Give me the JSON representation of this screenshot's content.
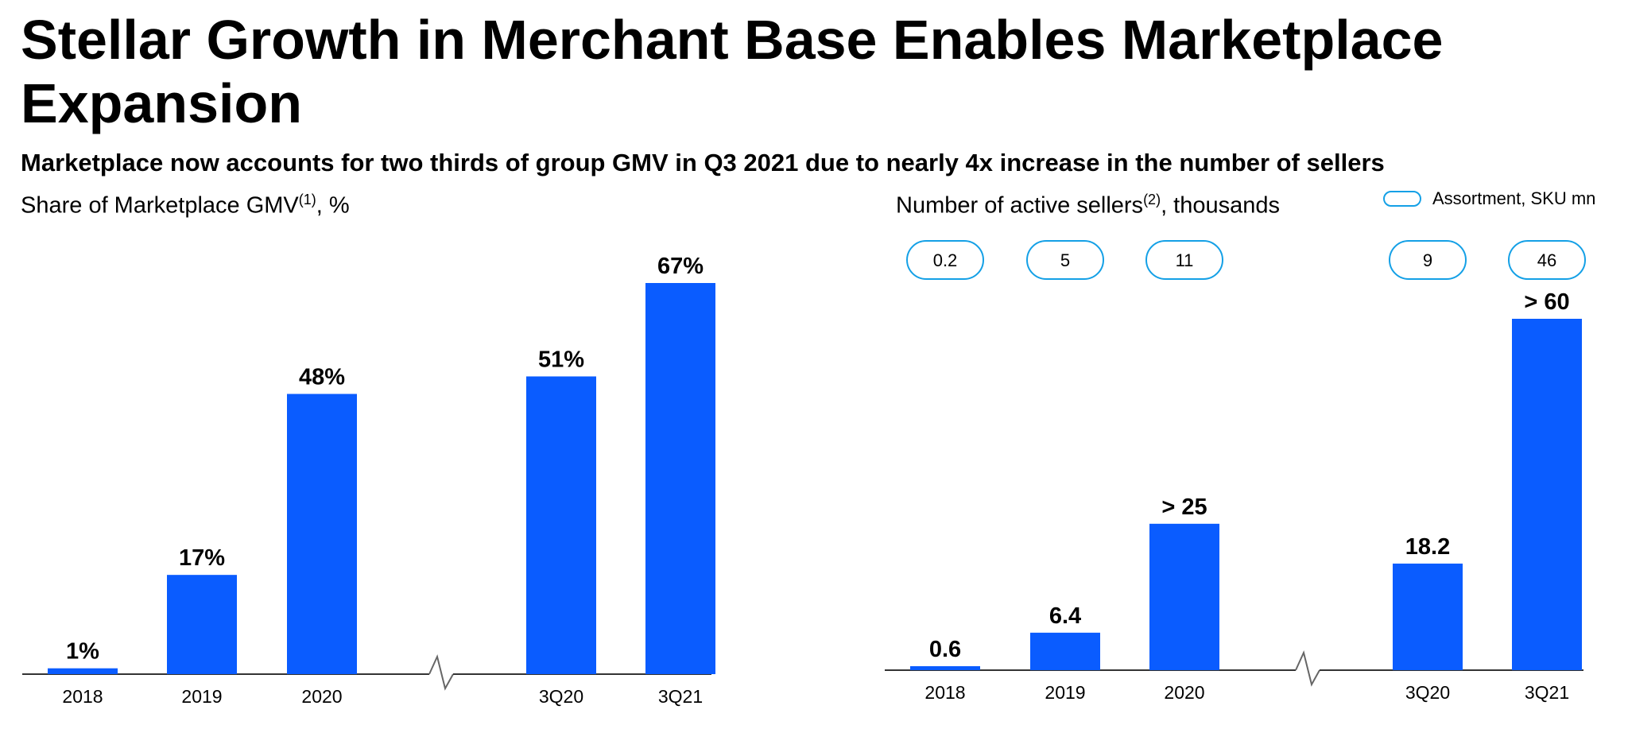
{
  "title": "Stellar Growth in Merchant Base Enables Marketplace Expansion",
  "subtitle": "Marketplace now accounts for two thirds of group GMV in Q3 2021 due to nearly 4x increase in the number of sellers",
  "legend": {
    "label": "Assortment, SKU mn"
  },
  "colors": {
    "bar": "#0a5cff",
    "pill_border": "#14a0e6",
    "axis": "#333333"
  },
  "chart_data": [
    {
      "type": "bar",
      "title": "Share of Marketplace GMV",
      "title_sup": "(1)",
      "title_suffix": ", %",
      "categories": [
        "2018",
        "2019",
        "2020",
        "3Q20",
        "3Q21"
      ],
      "values": [
        1,
        17,
        48,
        51,
        67
      ],
      "data_labels": [
        "1%",
        "17%",
        "48%",
        "51%",
        "67%"
      ],
      "axis_break_between": [
        "2020",
        "3Q20"
      ],
      "ylim": [
        0,
        67
      ],
      "grid": false
    },
    {
      "type": "bar",
      "title": "Number of active sellers",
      "title_sup": "(2)",
      "title_suffix": ", thousands",
      "categories": [
        "2018",
        "2019",
        "2020",
        "3Q20",
        "3Q21"
      ],
      "values": [
        0.6,
        6.4,
        25,
        18.2,
        60
      ],
      "data_labels": [
        "0.6",
        "6.4",
        "> 25",
        "18.2",
        "> 60"
      ],
      "assortment_sku_mn": [
        "0.2",
        "5",
        "11",
        "9",
        "46"
      ],
      "axis_break_between": [
        "2020",
        "3Q20"
      ],
      "ylim": [
        0,
        60
      ],
      "grid": false
    }
  ]
}
